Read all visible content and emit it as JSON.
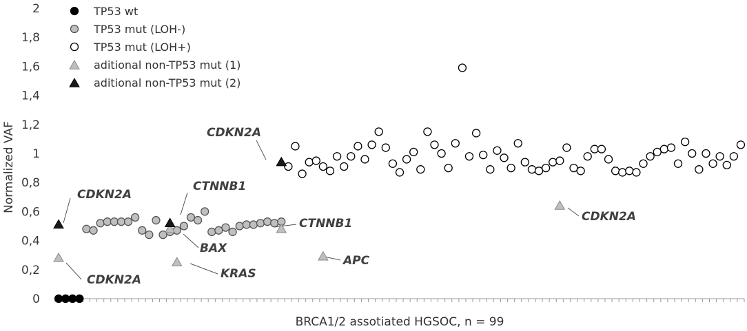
{
  "chart_data": {
    "type": "scatter",
    "title": "",
    "xlabel": "BRCA1/2 assotiated HGSOC, n = 99",
    "ylabel": "Normalized VAF",
    "ylim": [
      0,
      2
    ],
    "xlim": [
      0.5,
      99.5
    ],
    "y_ticks": [
      "0",
      "0,2",
      "0,4",
      "0,6",
      "0,8",
      "1",
      "1,2",
      "1,4",
      "1,6",
      "1,8",
      "2"
    ],
    "grid": false,
    "legend_position": "top-left",
    "series": [
      {
        "name": "TP53 wt",
        "marker": "circle",
        "color": "#000000",
        "stroke": "#000000",
        "points": [
          [
            1,
            0
          ],
          [
            2,
            0
          ],
          [
            3,
            0
          ],
          [
            4,
            0
          ]
        ]
      },
      {
        "name": "TP53 mut (LOH-)",
        "marker": "circle",
        "color": "#bfbfbf",
        "stroke": "#555555",
        "points": [
          [
            5,
            0.48
          ],
          [
            6,
            0.47
          ],
          [
            7,
            0.52
          ],
          [
            8,
            0.53
          ],
          [
            9,
            0.53
          ],
          [
            10,
            0.53
          ],
          [
            11,
            0.53
          ],
          [
            12,
            0.56
          ],
          [
            13,
            0.47
          ],
          [
            14,
            0.44
          ],
          [
            15,
            0.54
          ],
          [
            16,
            0.44
          ],
          [
            17,
            0.46
          ],
          [
            18,
            0.47
          ],
          [
            19,
            0.5
          ],
          [
            20,
            0.56
          ],
          [
            21,
            0.54
          ],
          [
            22,
            0.6
          ],
          [
            23,
            0.46
          ],
          [
            24,
            0.47
          ],
          [
            25,
            0.49
          ],
          [
            26,
            0.46
          ],
          [
            27,
            0.5
          ],
          [
            28,
            0.51
          ],
          [
            29,
            0.51
          ],
          [
            30,
            0.52
          ],
          [
            31,
            0.53
          ],
          [
            32,
            0.52
          ],
          [
            33,
            0.53
          ]
        ]
      },
      {
        "name": "TP53 mut (LOH+)",
        "marker": "circle",
        "color": "#ffffff",
        "stroke": "#000000",
        "points": [
          [
            34,
            0.91
          ],
          [
            35,
            1.05
          ],
          [
            36,
            0.86
          ],
          [
            37,
            0.94
          ],
          [
            38,
            0.95
          ],
          [
            39,
            0.91
          ],
          [
            40,
            0.88
          ],
          [
            41,
            0.98
          ],
          [
            42,
            0.91
          ],
          [
            43,
            0.98
          ],
          [
            44,
            1.05
          ],
          [
            45,
            0.96
          ],
          [
            46,
            1.06
          ],
          [
            47,
            1.15
          ],
          [
            48,
            1.04
          ],
          [
            49,
            0.93
          ],
          [
            50,
            0.87
          ],
          [
            51,
            0.96
          ],
          [
            52,
            1.01
          ],
          [
            53,
            0.89
          ],
          [
            54,
            1.15
          ],
          [
            55,
            1.06
          ],
          [
            56,
            1.0
          ],
          [
            57,
            0.9
          ],
          [
            58,
            1.07
          ],
          [
            59,
            1.59
          ],
          [
            60,
            0.98
          ],
          [
            61,
            1.14
          ],
          [
            62,
            0.99
          ],
          [
            63,
            0.89
          ],
          [
            64,
            1.02
          ],
          [
            65,
            0.97
          ],
          [
            66,
            0.9
          ],
          [
            67,
            1.07
          ],
          [
            68,
            0.94
          ],
          [
            69,
            0.89
          ],
          [
            70,
            0.88
          ],
          [
            71,
            0.9
          ],
          [
            72,
            0.94
          ],
          [
            73,
            0.95
          ],
          [
            74,
            1.04
          ],
          [
            75,
            0.9
          ],
          [
            76,
            0.88
          ],
          [
            77,
            0.98
          ],
          [
            78,
            1.03
          ],
          [
            79,
            1.03
          ],
          [
            80,
            0.96
          ],
          [
            81,
            0.88
          ],
          [
            82,
            0.87
          ],
          [
            83,
            0.88
          ],
          [
            84,
            0.87
          ],
          [
            85,
            0.93
          ],
          [
            86,
            0.98
          ],
          [
            87,
            1.01
          ],
          [
            88,
            1.03
          ],
          [
            89,
            1.04
          ],
          [
            90,
            0.93
          ],
          [
            91,
            1.08
          ],
          [
            92,
            1.0
          ],
          [
            93,
            0.89
          ],
          [
            94,
            1.0
          ],
          [
            95,
            0.93
          ],
          [
            96,
            0.98
          ],
          [
            97,
            0.92
          ],
          [
            98,
            0.98
          ],
          [
            99,
            1.06
          ]
        ]
      },
      {
        "name": "aditional non-TP53 mut (1)",
        "marker": "triangle",
        "color": "#bfbfbf",
        "stroke": "#8a8a8a",
        "points": [
          [
            1,
            0.28
          ],
          [
            17,
            0.48
          ],
          [
            18,
            0.25
          ],
          [
            33,
            0.48
          ],
          [
            39,
            0.29
          ],
          [
            73,
            0.64
          ]
        ]
      },
      {
        "name": "aditional non-TP53  mut (2)",
        "marker": "triangle",
        "color": "#1a1a1a",
        "stroke": "#000000",
        "points": [
          [
            1,
            0.51
          ],
          [
            17,
            0.52
          ],
          [
            33,
            0.94
          ]
        ]
      }
    ],
    "annotations": [
      {
        "text": "CDKN2A",
        "x": 1,
        "y": 0.51
      },
      {
        "text": "CDKN2A",
        "x": 1,
        "y": 0.28
      },
      {
        "text": "CTNNB1",
        "x": 17,
        "y": 0.52
      },
      {
        "text": "BAX",
        "x": 17,
        "y": 0.48
      },
      {
        "text": "KRAS",
        "x": 18,
        "y": 0.25
      },
      {
        "text": "CTNNB1",
        "x": 33,
        "y": 0.48
      },
      {
        "text": "CDKN2A",
        "x": 33,
        "y": 0.94
      },
      {
        "text": "APC",
        "x": 39,
        "y": 0.29
      },
      {
        "text": "CDKN2A",
        "x": 73,
        "y": 0.64
      }
    ]
  }
}
